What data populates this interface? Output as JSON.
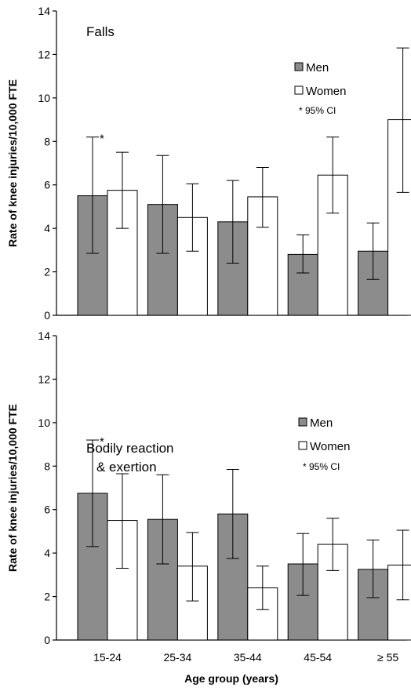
{
  "chart_data": [
    {
      "type": "bar",
      "title": "Falls",
      "ylabel": "Rate of knee injuries/10,000 FTE",
      "xlabel": "",
      "ylim": [
        0,
        14
      ],
      "yticks": [
        "0",
        "2",
        "4",
        "6",
        "8",
        "10",
        "12",
        "14"
      ],
      "categories": [
        "15-24",
        "25-34",
        "35-44",
        "45-54",
        "≥ 55"
      ],
      "legend_position": "right",
      "series": [
        {
          "name": "Men",
          "color": "#8c8c8c",
          "values": [
            5.5,
            5.1,
            4.3,
            2.8,
            2.95
          ],
          "ci_low": [
            2.85,
            2.85,
            2.4,
            1.95,
            1.65
          ],
          "ci_high": [
            8.2,
            7.35,
            6.2,
            3.7,
            4.25
          ]
        },
        {
          "name": "Women",
          "color": "#ffffff",
          "values": [
            5.75,
            4.5,
            5.45,
            6.45,
            9.0
          ],
          "ci_low": [
            4.0,
            2.95,
            4.05,
            4.7,
            5.65
          ],
          "ci_high": [
            7.5,
            6.05,
            6.8,
            8.2,
            12.3
          ]
        }
      ],
      "annotation": "* 95% CI",
      "star_label": "*"
    },
    {
      "type": "bar",
      "title": "Bodily reaction & exertion",
      "title_lines": [
        "Bodily reaction",
        "& exertion"
      ],
      "ylabel": "Rate of knee injuries/10,000 FTE",
      "xlabel": "Age group (years)",
      "ylim": [
        0,
        14
      ],
      "yticks": [
        "0",
        "2",
        "4",
        "6",
        "8",
        "10",
        "12",
        "14"
      ],
      "categories": [
        "15-24",
        "25-34",
        "35-44",
        "45-54",
        "≥ 55"
      ],
      "legend_position": "right",
      "series": [
        {
          "name": "Men",
          "color": "#8c8c8c",
          "values": [
            6.75,
            5.55,
            5.8,
            3.5,
            3.25
          ],
          "ci_low": [
            4.3,
            3.5,
            3.75,
            2.05,
            1.95
          ],
          "ci_high": [
            9.2,
            7.6,
            7.85,
            4.9,
            4.6
          ]
        },
        {
          "name": "Women",
          "color": "#ffffff",
          "values": [
            5.5,
            3.4,
            2.4,
            4.4,
            3.45
          ],
          "ci_low": [
            3.3,
            1.8,
            1.4,
            3.2,
            1.85
          ],
          "ci_high": [
            7.65,
            4.95,
            3.4,
            5.6,
            5.05
          ]
        }
      ],
      "annotation": "* 95% CI",
      "star_label": "*"
    }
  ]
}
